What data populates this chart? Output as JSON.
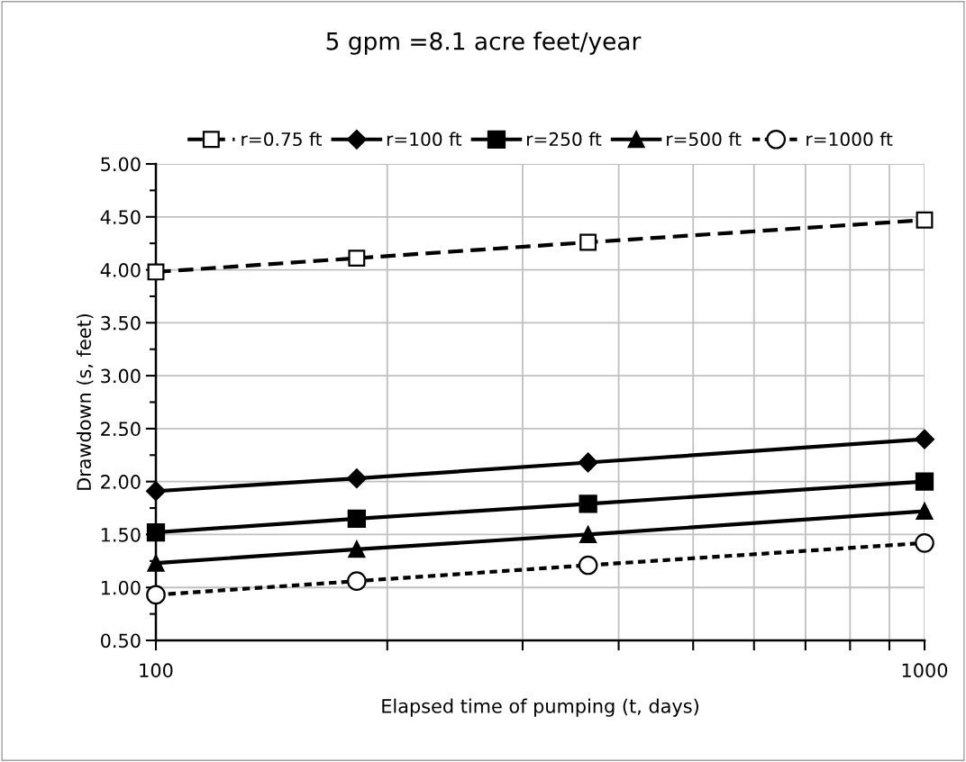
{
  "chart_data": {
    "type": "line",
    "title": "5 gpm =8.1 acre feet/year",
    "xlabel": "Elapsed time of pumping (t, days)",
    "ylabel": "Drawdown (s, feet)",
    "x": [
      100,
      182.5,
      365,
      1000
    ],
    "series": [
      {
        "name": "r=0.75 ft",
        "color": "#000000",
        "marker": "square",
        "line_style": "dashed",
        "values": [
          3.98,
          4.11,
          4.26,
          4.47
        ]
      },
      {
        "name": "r=100 ft",
        "color": "#000000",
        "marker": "diamond",
        "line_style": "solid",
        "values": [
          1.91,
          2.03,
          2.18,
          2.4
        ]
      },
      {
        "name": "r=250 ft",
        "color": "#000000",
        "marker": "square",
        "line_style": "solid",
        "values": [
          1.52,
          1.65,
          1.79,
          2.0
        ]
      },
      {
        "name": "r=500 ft",
        "color": "#000000",
        "marker": "triangle",
        "line_style": "solid",
        "values": [
          1.23,
          1.36,
          1.5,
          1.72
        ]
      },
      {
        "name": "r=1000 ft",
        "color": "#000000",
        "marker": "circle",
        "line_style": "dotted",
        "values": [
          0.93,
          1.06,
          1.21,
          1.42
        ]
      }
    ],
    "log": "x",
    "xlim": [
      100,
      1000
    ],
    "xticks": [
      100,
      {
        "value": 200,
        "label": null
      },
      {
        "value": 300,
        "label": null
      },
      {
        "value": 400,
        "label": null
      },
      {
        "value": 500,
        "label": null
      },
      {
        "value": 600,
        "label": null
      },
      {
        "value": 700,
        "label": null
      },
      {
        "value": 800,
        "label": null
      },
      {
        "value": 900,
        "label": null
      },
      1000
    ],
    "ylim": [
      0.5,
      5.0
    ],
    "yticks": [
      {
        "value": 0.5,
        "label": "0.50"
      },
      {
        "value": 1.0,
        "label": "1.00"
      },
      {
        "value": 1.5,
        "label": "1.50"
      },
      {
        "value": 2.0,
        "label": "2.00"
      },
      {
        "value": 2.5,
        "label": "2.50"
      },
      {
        "value": 3.0,
        "label": "3.00"
      },
      {
        "value": 3.5,
        "label": "3.50"
      },
      {
        "value": 4.0,
        "label": "4.00"
      },
      {
        "value": 4.5,
        "label": "4.50"
      },
      {
        "value": 5.0,
        "label": "5.00"
      }
    ],
    "grid": true,
    "legend": "top"
  }
}
